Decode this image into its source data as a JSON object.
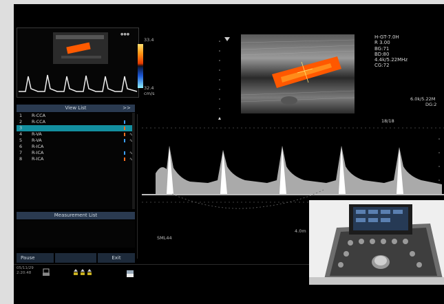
{
  "colorbar": {
    "top": "33.4",
    "mid": "32.4",
    "unit": "cm/s"
  },
  "view_list": {
    "title": "View List",
    "arrow": ">>",
    "items": [
      {
        "num": "1",
        "label": "R-CCA"
      },
      {
        "num": "2",
        "label": "R-CCA"
      },
      {
        "num": "3",
        "label": ""
      },
      {
        "num": "4",
        "label": "R-VA"
      },
      {
        "num": "5",
        "label": "R-VA"
      },
      {
        "num": "6",
        "label": "R-ICA"
      },
      {
        "num": "7",
        "label": "R-ICA"
      },
      {
        "num": "8",
        "label": "R-ICA"
      }
    ]
  },
  "measurement_list": {
    "title": "Measurement List"
  },
  "buttons": {
    "pause": "Pause",
    "exit": "Exit"
  },
  "datetime": {
    "date": "05/11/29",
    "time": "2:20:48"
  },
  "image_params": [
    "H-GT-7.0H",
    "R 3.00",
    "BG:71",
    "BD:80",
    "4.4k/5.22MHz",
    "CG:72"
  ],
  "doppler_params": [
    "6.0k/5.22M",
    "DG:2"
  ],
  "frame_count": "18/18",
  "probe": "SML44",
  "depth": "4.0m",
  "colors": {
    "accent": "#138fa0",
    "panel": "#2a3a50",
    "doppler_orange": "#ff6a00"
  }
}
